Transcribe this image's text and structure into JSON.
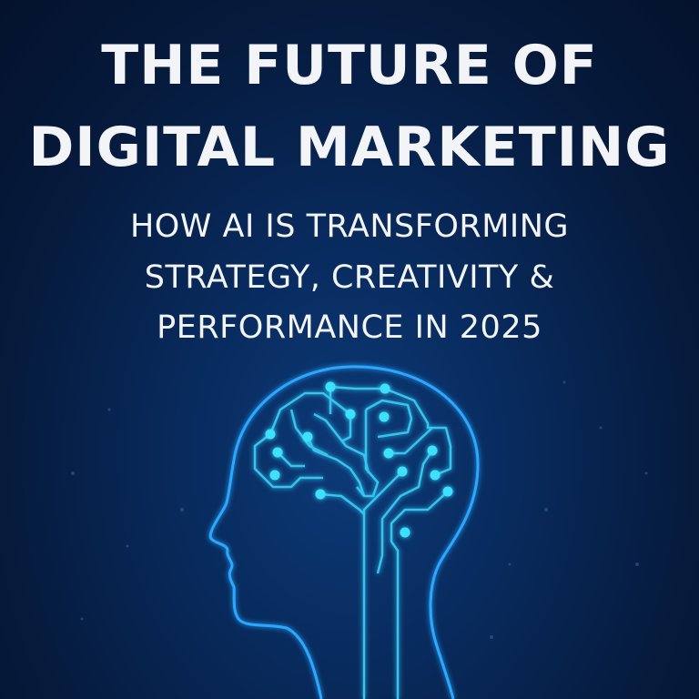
{
  "title": {
    "line1": "THE FUTURE OF",
    "line2": "DIGITAL MARKETING"
  },
  "subtitle": {
    "line1": "HOW AI IS TRANSFORMING",
    "line2": "STRATEGY, CREATIVITY &",
    "line3": "PERFORMANCE IN 2025"
  },
  "illustration": {
    "icon": "ai-circuit-brain-head-icon",
    "glow_color": "#2aa8ff",
    "node_color": "#3ee0ff"
  },
  "colors": {
    "background": "#061a3c",
    "text": "#f2f4f8"
  }
}
